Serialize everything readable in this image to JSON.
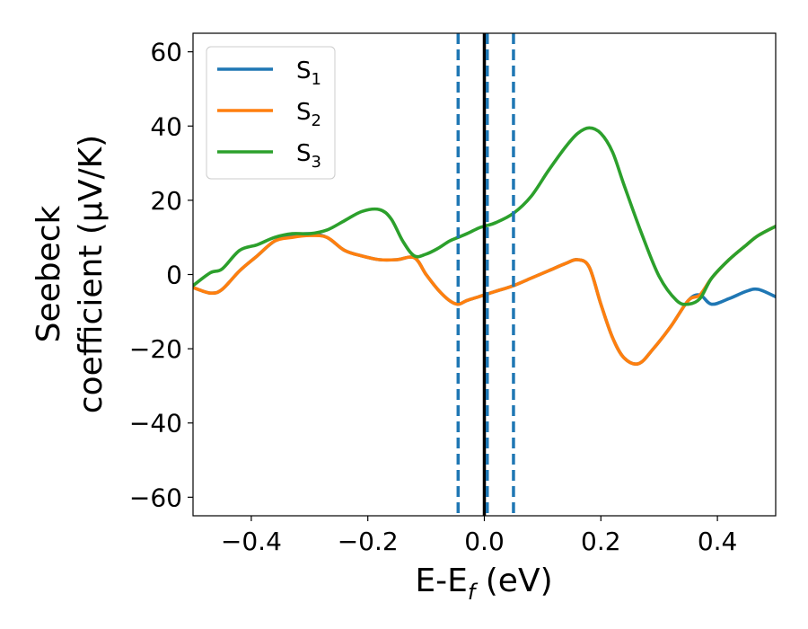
{
  "chart_data": {
    "type": "line",
    "xlabel_main": "E-E",
    "xlabel_sub": "f",
    "xlabel_tail": " (eV)",
    "ylabel_line1": "Seebeck",
    "ylabel_line2": "coefficient  (μV/K)",
    "xlim": [
      -0.5,
      0.5
    ],
    "ylim": [
      -65,
      65
    ],
    "xticks": [
      -0.4,
      -0.2,
      0.0,
      0.2,
      0.4
    ],
    "xtick_labels": [
      "−0.4",
      "−0.2",
      "0.0",
      "0.2",
      "0.4"
    ],
    "yticks": [
      60,
      40,
      20,
      0,
      -20,
      -40,
      -60
    ],
    "ytick_labels": [
      "60",
      "40",
      "20",
      "0",
      "−20",
      "−40",
      "−60"
    ],
    "grid": false,
    "legend_position": "top-left",
    "vlines": [
      {
        "x": 0.0,
        "color": "#000000",
        "style": "solid"
      },
      {
        "x": -0.045,
        "color": "#1f77b4",
        "style": "dashed"
      },
      {
        "x": 0.005,
        "color": "#1f77b4",
        "style": "dashed"
      },
      {
        "x": 0.05,
        "color": "#1f77b4",
        "style": "dashed"
      }
    ],
    "series": [
      {
        "name": "S",
        "sub": "1",
        "color": "#1f77b4",
        "x": [
          -0.5,
          -0.47,
          -0.45,
          -0.42,
          -0.39,
          -0.36,
          -0.33,
          -0.3,
          -0.27,
          -0.24,
          -0.21,
          -0.18,
          -0.15,
          -0.12,
          -0.1,
          -0.08,
          -0.06,
          -0.045,
          -0.03,
          -0.01,
          0.0,
          0.02,
          0.05,
          0.08,
          0.11,
          0.14,
          0.16,
          0.18,
          0.2,
          0.22,
          0.24,
          0.265,
          0.29,
          0.32,
          0.35,
          0.37,
          0.39,
          0.42,
          0.45,
          0.47,
          0.5
        ],
        "y": [
          -3.5,
          -5,
          -4,
          1,
          5,
          9,
          10.5,
          11,
          10,
          6.5,
          5,
          4,
          4,
          4.5,
          0,
          -4,
          -7,
          -8,
          -7,
          -6,
          -5.5,
          -4.5,
          -3,
          -1,
          1,
          3,
          4,
          2,
          -8,
          -17,
          -22.5,
          -24,
          -20,
          -14,
          -7,
          -5.5,
          -8,
          -6.5,
          -4.5,
          -4,
          -6
        ]
      },
      {
        "name": "S",
        "sub": "2",
        "color": "#ff7f0e",
        "x": [
          -0.5,
          -0.47,
          -0.45,
          -0.42,
          -0.39,
          -0.36,
          -0.33,
          -0.3,
          -0.27,
          -0.24,
          -0.21,
          -0.18,
          -0.15,
          -0.12,
          -0.1,
          -0.08,
          -0.06,
          -0.045,
          -0.03,
          -0.01,
          0.0,
          0.02,
          0.05,
          0.08,
          0.11,
          0.14,
          0.16,
          0.18,
          0.2,
          0.22,
          0.24,
          0.265,
          0.29,
          0.32,
          0.35,
          0.37,
          0.39,
          0.42,
          0.45,
          0.47,
          0.5
        ],
        "y": [
          -3.5,
          -5,
          -4,
          1,
          5,
          9,
          10,
          10.5,
          10,
          6.5,
          5,
          4,
          4,
          4.5,
          0,
          -4,
          -7,
          -8,
          -7,
          -6,
          -5.5,
          -4.5,
          -3,
          -1,
          1,
          3,
          4,
          2,
          -8,
          -17,
          -22.5,
          -24,
          -20,
          -14,
          -7,
          -5.5,
          -1,
          4,
          8,
          10.5,
          13
        ]
      },
      {
        "name": "S",
        "sub": "3",
        "color": "#2ca02c",
        "x": [
          -0.5,
          -0.47,
          -0.45,
          -0.42,
          -0.39,
          -0.36,
          -0.33,
          -0.3,
          -0.27,
          -0.24,
          -0.21,
          -0.18,
          -0.16,
          -0.14,
          -0.12,
          -0.1,
          -0.08,
          -0.06,
          -0.045,
          -0.03,
          -0.01,
          0.0,
          0.02,
          0.05,
          0.08,
          0.11,
          0.14,
          0.16,
          0.18,
          0.2,
          0.22,
          0.24,
          0.27,
          0.3,
          0.33,
          0.35,
          0.37,
          0.39,
          0.42,
          0.45,
          0.47,
          0.5
        ],
        "y": [
          -3,
          0.5,
          1.5,
          6.5,
          8,
          10,
          11,
          11,
          12,
          14.5,
          17,
          17.5,
          15,
          9,
          5,
          5.5,
          7,
          9,
          10,
          11,
          12.5,
          13,
          14,
          16.5,
          21,
          28,
          34.5,
          38,
          39.5,
          38,
          33,
          24,
          11,
          -0.5,
          -7,
          -8,
          -6.5,
          -1,
          4,
          8,
          10.5,
          13
        ]
      }
    ]
  }
}
